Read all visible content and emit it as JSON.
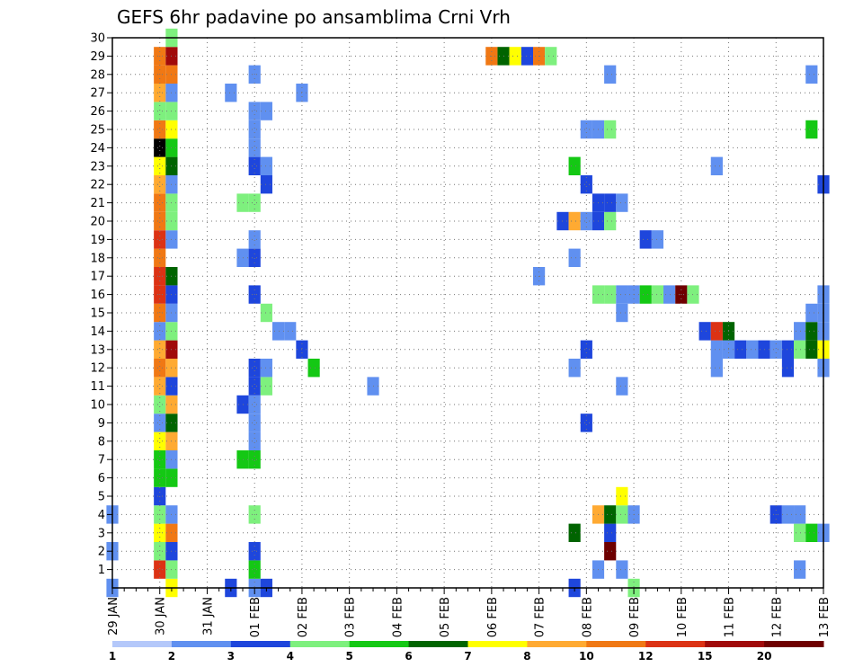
{
  "chart_data": {
    "type": "heatmap",
    "title": "GEFS 6hr padavine po ansamblima Crni Vrh",
    "xlabel": "",
    "ylabel": "",
    "y_ticks": [
      "1",
      "2",
      "3",
      "4",
      "5",
      "6",
      "7",
      "8",
      "9",
      "10",
      "11",
      "12",
      "13",
      "14",
      "15",
      "16",
      "17",
      "18",
      "19",
      "20",
      "21",
      "22",
      "23",
      "24",
      "25",
      "26",
      "27",
      "28",
      "29",
      "30"
    ],
    "x_ticks": [
      "29 JAN",
      "30 JAN",
      "31 JAN",
      "01 FEB",
      "02 FEB",
      "03 FEB",
      "04 FEB",
      "05 FEB",
      "06 FEB",
      "07 FEB",
      "08 FEB",
      "09 FEB",
      "10 FEB",
      "11 FEB",
      "12 FEB",
      "13 FEB"
    ],
    "x_range_steps": [
      0,
      60
    ],
    "y_range": [
      0,
      30
    ],
    "grid": true,
    "colorbar": {
      "labels": [
        "1",
        "2",
        "3",
        "4",
        "5",
        "6",
        "7",
        "8",
        "10",
        "12",
        "15",
        "20"
      ],
      "colors": [
        "#b4c8fa",
        "#6090f0",
        "#1e46dc",
        "#7ef07e",
        "#14c814",
        "#006400",
        "#ffff00",
        "#ffaa32",
        "#f07814",
        "#dc3214",
        "#a00a0a",
        "#6e0000"
      ]
    },
    "cells": [
      [
        0,
        0,
        1
      ],
      [
        0,
        2,
        1
      ],
      [
        0,
        4,
        1
      ],
      [
        4,
        1,
        9
      ],
      [
        4,
        2,
        3
      ],
      [
        4,
        3,
        6
      ],
      [
        4,
        4,
        3
      ],
      [
        4,
        5,
        2
      ],
      [
        4,
        6,
        4
      ],
      [
        4,
        7,
        4
      ],
      [
        4,
        8,
        6
      ],
      [
        4,
        9,
        1
      ],
      [
        4,
        10,
        3
      ],
      [
        4,
        11,
        7
      ],
      [
        4,
        12,
        8
      ],
      [
        4,
        13,
        7
      ],
      [
        4,
        14,
        1
      ],
      [
        4,
        15,
        8
      ],
      [
        4,
        16,
        9
      ],
      [
        4,
        17,
        9
      ],
      [
        4,
        18,
        8
      ],
      [
        4,
        19,
        9
      ],
      [
        4,
        20,
        8
      ],
      [
        4,
        21,
        8
      ],
      [
        4,
        22,
        7
      ],
      [
        4,
        23,
        6
      ],
      [
        4,
        24,
        12
      ],
      [
        4,
        25,
        8
      ],
      [
        4,
        26,
        3
      ],
      [
        4,
        27,
        7
      ],
      [
        4,
        28,
        8
      ],
      [
        4,
        29,
        8
      ],
      [
        5,
        0,
        6
      ],
      [
        5,
        1,
        3
      ],
      [
        5,
        2,
        2
      ],
      [
        5,
        3,
        8
      ],
      [
        5,
        4,
        1
      ],
      [
        5,
        6,
        4
      ],
      [
        5,
        7,
        1
      ],
      [
        5,
        8,
        7
      ],
      [
        5,
        9,
        5
      ],
      [
        5,
        10,
        7
      ],
      [
        5,
        11,
        2
      ],
      [
        5,
        12,
        7
      ],
      [
        5,
        13,
        10
      ],
      [
        5,
        14,
        3
      ],
      [
        5,
        15,
        1
      ],
      [
        5,
        16,
        2
      ],
      [
        5,
        17,
        5
      ],
      [
        5,
        19,
        1
      ],
      [
        5,
        20,
        3
      ],
      [
        5,
        21,
        3
      ],
      [
        5,
        22,
        1
      ],
      [
        5,
        23,
        5
      ],
      [
        5,
        24,
        4
      ],
      [
        5,
        25,
        6
      ],
      [
        5,
        26,
        3
      ],
      [
        5,
        27,
        1
      ],
      [
        5,
        28,
        8
      ],
      [
        5,
        29,
        10
      ],
      [
        5,
        30,
        3
      ],
      [
        10,
        0,
        2
      ],
      [
        10,
        27,
        1
      ],
      [
        11,
        7,
        4
      ],
      [
        11,
        10,
        2
      ],
      [
        11,
        18,
        1
      ],
      [
        11,
        21,
        3
      ],
      [
        12,
        0,
        1
      ],
      [
        12,
        1,
        4
      ],
      [
        12,
        2,
        2
      ],
      [
        12,
        4,
        3
      ],
      [
        12,
        7,
        4
      ],
      [
        12,
        8,
        1
      ],
      [
        12,
        9,
        1
      ],
      [
        12,
        10,
        1
      ],
      [
        12,
        11,
        2
      ],
      [
        12,
        12,
        2
      ],
      [
        12,
        16,
        2
      ],
      [
        12,
        18,
        2
      ],
      [
        12,
        19,
        1
      ],
      [
        12,
        21,
        3
      ],
      [
        12,
        23,
        2
      ],
      [
        12,
        24,
        1
      ],
      [
        12,
        25,
        1
      ],
      [
        12,
        26,
        1
      ],
      [
        12,
        28,
        1
      ],
      [
        13,
        0,
        2
      ],
      [
        13,
        11,
        3
      ],
      [
        13,
        12,
        1
      ],
      [
        13,
        15,
        3
      ],
      [
        13,
        22,
        2
      ],
      [
        13,
        23,
        1
      ],
      [
        13,
        26,
        1
      ],
      [
        14,
        14,
        1
      ],
      [
        15,
        14,
        1
      ],
      [
        16,
        13,
        2
      ],
      [
        16,
        27,
        1
      ],
      [
        17,
        12,
        4
      ],
      [
        22,
        11,
        1
      ],
      [
        32,
        29,
        8
      ],
      [
        33,
        29,
        5
      ],
      [
        34,
        29,
        6
      ],
      [
        35,
        29,
        2
      ],
      [
        36,
        17,
        1
      ],
      [
        36,
        29,
        8
      ],
      [
        37,
        29,
        3
      ],
      [
        38,
        20,
        2
      ],
      [
        39,
        0,
        2
      ],
      [
        39,
        3,
        5
      ],
      [
        39,
        12,
        1
      ],
      [
        39,
        18,
        1
      ],
      [
        39,
        20,
        7
      ],
      [
        39,
        23,
        4
      ],
      [
        40,
        9,
        2
      ],
      [
        40,
        13,
        2
      ],
      [
        40,
        20,
        1
      ],
      [
        40,
        22,
        2
      ],
      [
        40,
        25,
        1
      ],
      [
        41,
        1,
        1
      ],
      [
        41,
        4,
        7
      ],
      [
        41,
        16,
        3
      ],
      [
        41,
        20,
        2
      ],
      [
        41,
        21,
        2
      ],
      [
        41,
        25,
        1
      ],
      [
        42,
        2,
        11
      ],
      [
        42,
        3,
        2
      ],
      [
        42,
        4,
        5
      ],
      [
        42,
        16,
        3
      ],
      [
        42,
        20,
        3
      ],
      [
        42,
        21,
        2
      ],
      [
        42,
        25,
        3
      ],
      [
        42,
        28,
        1
      ],
      [
        43,
        1,
        1
      ],
      [
        43,
        4,
        3
      ],
      [
        43,
        5,
        6
      ],
      [
        43,
        11,
        1
      ],
      [
        43,
        15,
        1
      ],
      [
        43,
        16,
        1
      ],
      [
        43,
        21,
        1
      ],
      [
        44,
        0,
        3
      ],
      [
        44,
        4,
        1
      ],
      [
        44,
        16,
        1
      ],
      [
        45,
        16,
        4
      ],
      [
        45,
        19,
        2
      ],
      [
        46,
        16,
        3
      ],
      [
        46,
        19,
        1
      ],
      [
        47,
        16,
        1
      ],
      [
        48,
        16,
        11
      ],
      [
        49,
        16,
        3
      ],
      [
        50,
        14,
        2
      ],
      [
        51,
        12,
        1
      ],
      [
        51,
        13,
        1
      ],
      [
        51,
        14,
        9
      ],
      [
        51,
        23,
        1
      ],
      [
        52,
        13,
        1
      ],
      [
        52,
        14,
        5
      ],
      [
        53,
        13,
        2
      ],
      [
        54,
        13,
        1
      ],
      [
        55,
        13,
        2
      ],
      [
        56,
        4,
        2
      ],
      [
        56,
        13,
        1
      ],
      [
        57,
        4,
        1
      ],
      [
        57,
        13,
        2
      ],
      [
        57,
        12,
        2
      ],
      [
        58,
        1,
        1
      ],
      [
        58,
        3,
        3
      ],
      [
        58,
        4,
        1
      ],
      [
        58,
        13,
        3
      ],
      [
        58,
        14,
        1
      ],
      [
        59,
        3,
        4
      ],
      [
        59,
        13,
        5
      ],
      [
        59,
        14,
        5
      ],
      [
        59,
        15,
        1
      ],
      [
        59,
        25,
        4
      ],
      [
        59,
        28,
        1
      ],
      [
        60,
        3,
        1
      ],
      [
        60,
        12,
        1
      ],
      [
        60,
        13,
        6
      ],
      [
        60,
        14,
        1
      ],
      [
        60,
        15,
        1
      ],
      [
        60,
        16,
        1
      ],
      [
        60,
        22,
        2
      ]
    ]
  }
}
